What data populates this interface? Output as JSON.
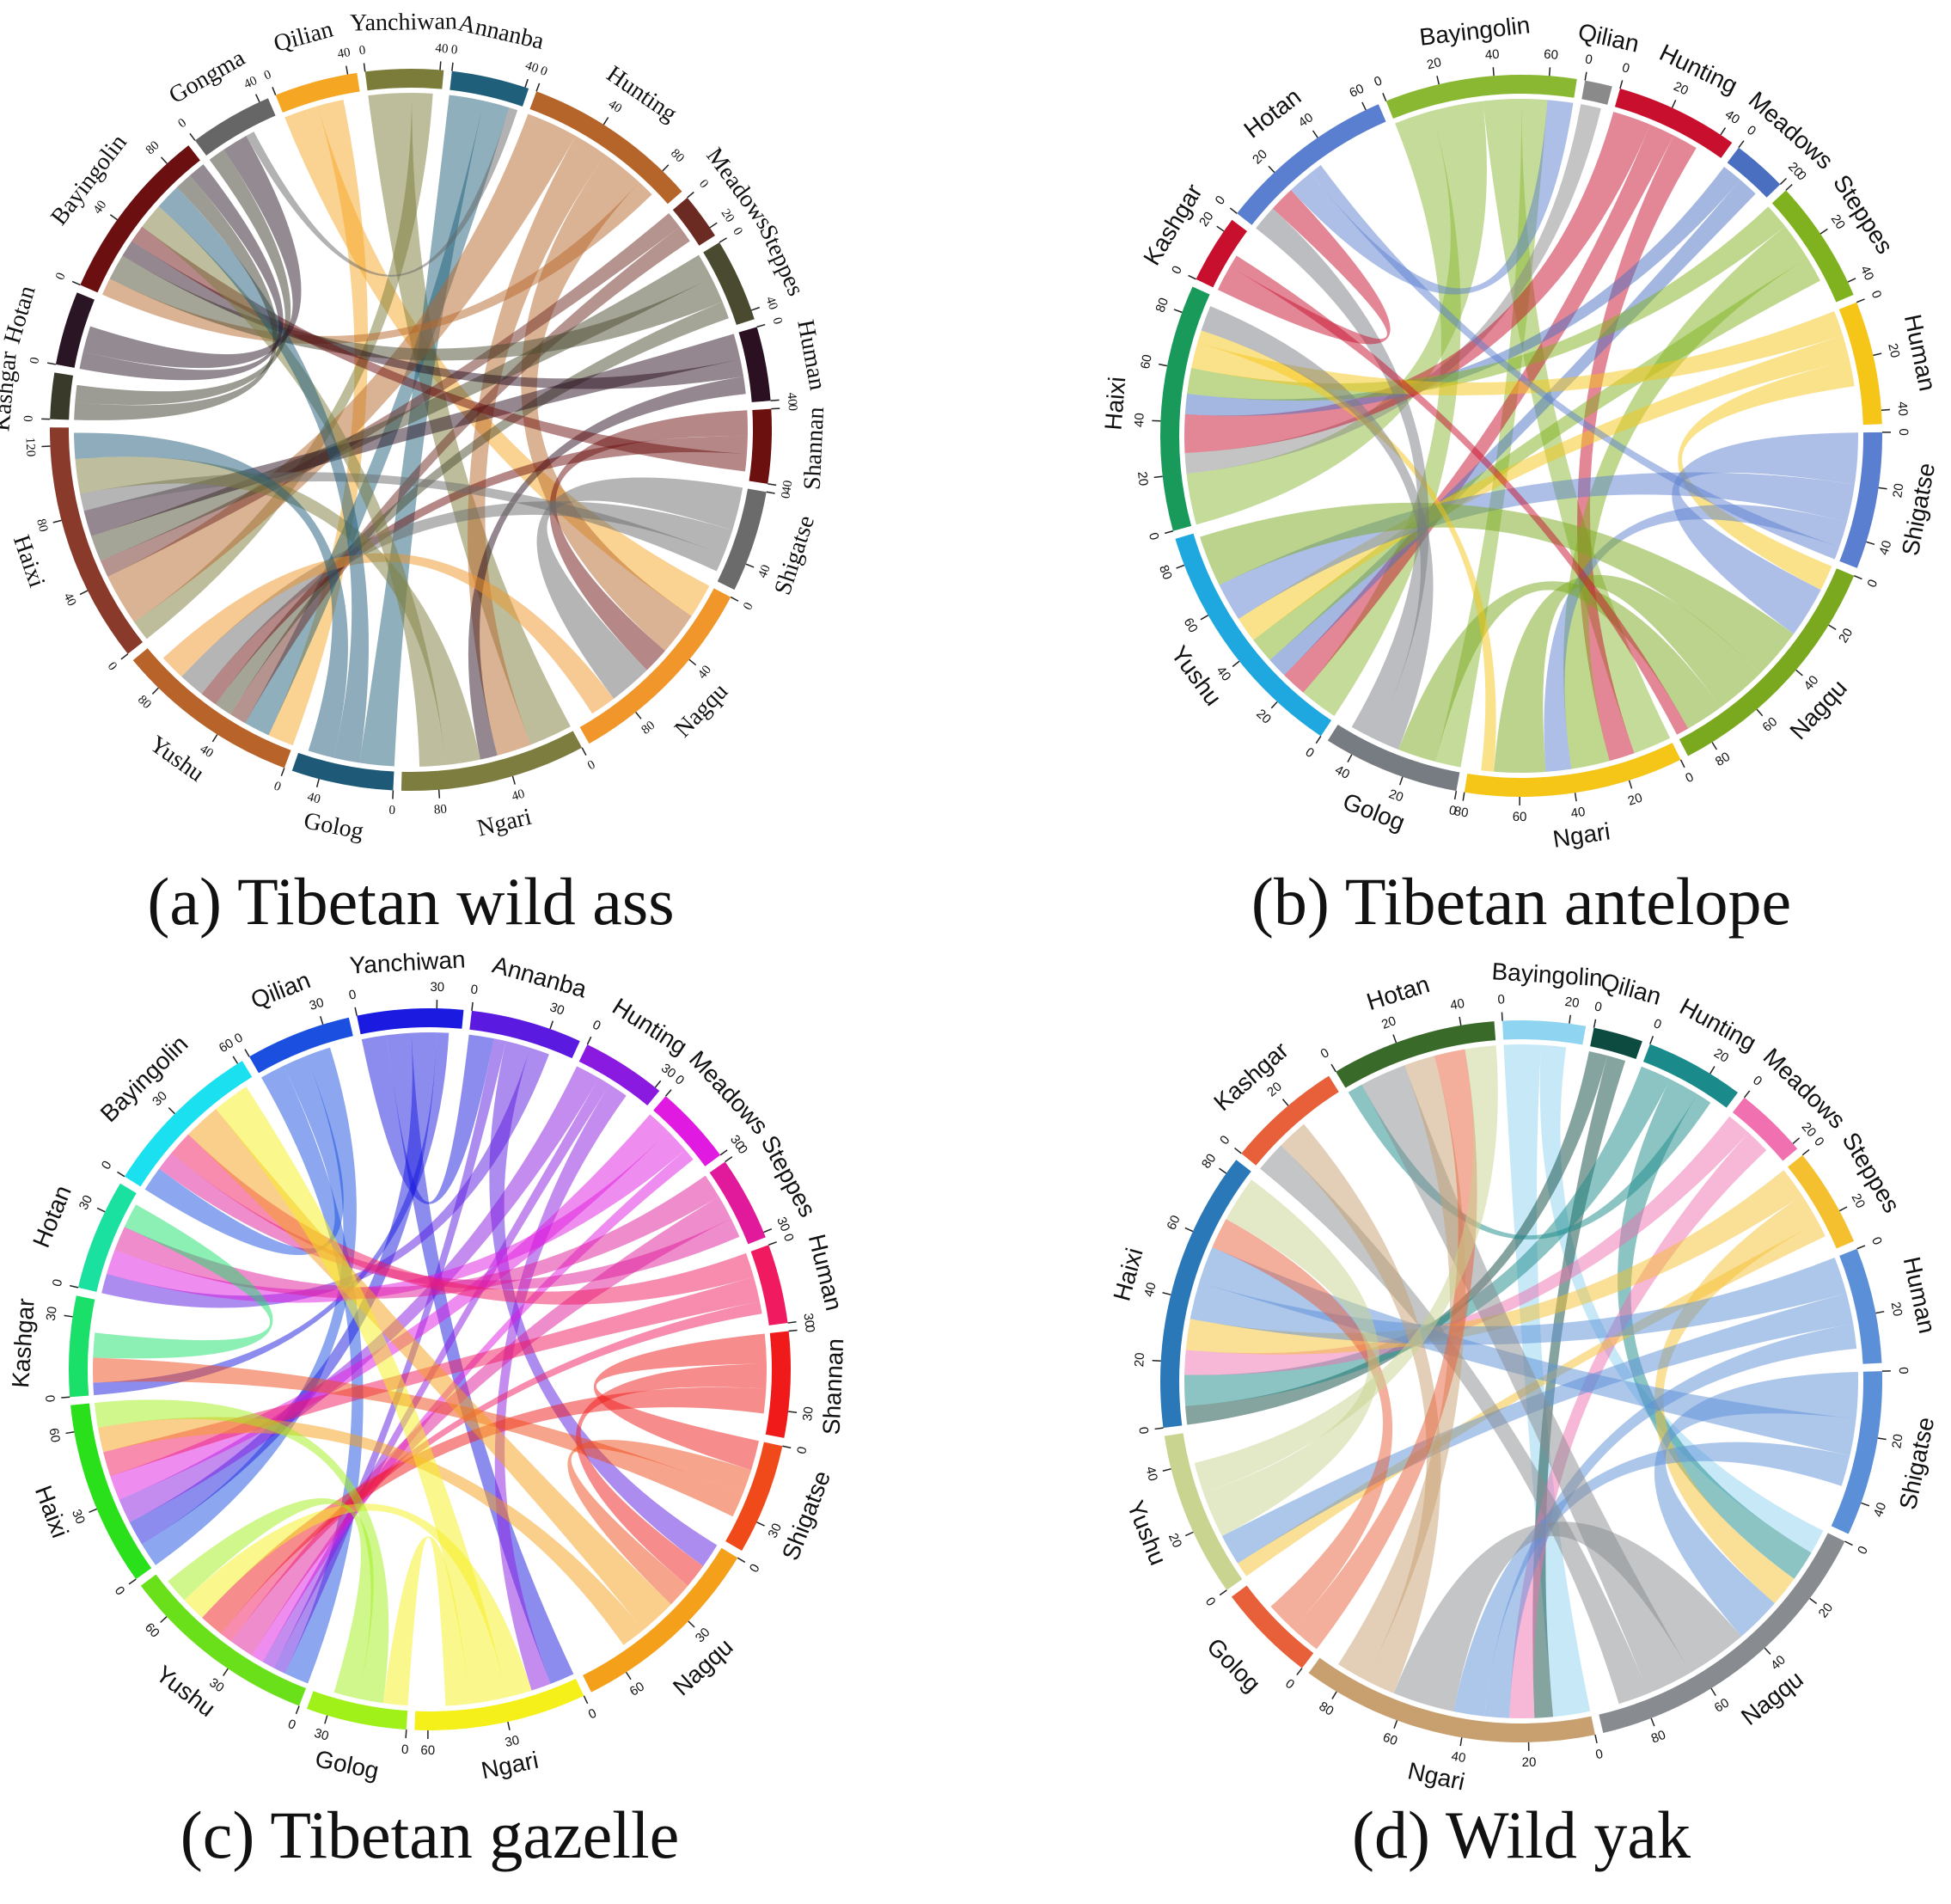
{
  "chart_data": [
    {
      "type": "chord",
      "title": "(a) Tibetan wild ass",
      "sectors": [
        {
          "name": "Qilian",
          "color": "#f5a623",
          "value": 45,
          "ticks": [
            0,
            40
          ]
        },
        {
          "name": "Yanchiwan",
          "color": "#7b7b3a",
          "value": 42,
          "ticks": [
            0,
            40
          ]
        },
        {
          "name": "Annanba",
          "color": "#1f5f7a",
          "value": 42,
          "ticks": [
            0,
            40
          ]
        },
        {
          "name": "Hunting",
          "color": "#b5652a",
          "value": 95,
          "ticks": [
            0,
            40,
            80
          ]
        },
        {
          "name": "Meadows",
          "color": "#6b2a22",
          "value": 25,
          "ticks": [
            0,
            20
          ]
        },
        {
          "name": "Steppes",
          "color": "#4a4a30",
          "value": 45,
          "ticks": [
            0,
            40
          ]
        },
        {
          "name": "Human",
          "color": "#2a1020",
          "value": 40,
          "ticks": [
            0,
            40
          ]
        },
        {
          "name": "Shannan",
          "color": "#6b0f0f",
          "value": 40,
          "ticks": [
            0,
            40
          ]
        },
        {
          "name": "Shigatse",
          "color": "#6b6b6b",
          "value": 55,
          "ticks": [
            0,
            40
          ]
        },
        {
          "name": "Nagqu",
          "color": "#f0962a",
          "value": 110,
          "ticks": [
            0,
            40,
            80
          ]
        },
        {
          "name": "Ngari",
          "color": "#7d7d40",
          "value": 100,
          "ticks": [
            0,
            40,
            80
          ]
        },
        {
          "name": "Golog",
          "color": "#1e5a78",
          "value": 55,
          "ticks": [
            0,
            40
          ]
        },
        {
          "name": "Yushu",
          "color": "#b8632a",
          "value": 100,
          "ticks": [
            0,
            40,
            80
          ]
        },
        {
          "name": "Haixi",
          "color": "#8a3a2a",
          "value": 130,
          "ticks": [
            0,
            40,
            80,
            120
          ]
        },
        {
          "name": "Kashgar",
          "color": "#3a3a2a",
          "value": 25,
          "ticks": [
            0
          ]
        },
        {
          "name": "Hotan",
          "color": "#2a1525",
          "value": 40,
          "ticks": [
            0
          ]
        },
        {
          "name": "Bayingolin",
          "color": "#6b0f10",
          "value": 95,
          "ticks": [
            0,
            40,
            80
          ]
        },
        {
          "name": "Gongma",
          "color": "#666666",
          "value": 45,
          "ticks": [
            0,
            40
          ]
        }
      ],
      "chords": [
        [
          0,
          9,
          20
        ],
        [
          0,
          12,
          15
        ],
        [
          1,
          10,
          25
        ],
        [
          1,
          13,
          12
        ],
        [
          2,
          11,
          20
        ],
        [
          2,
          12,
          15
        ],
        [
          3,
          13,
          30
        ],
        [
          3,
          10,
          20
        ],
        [
          3,
          9,
          25
        ],
        [
          3,
          16,
          10
        ],
        [
          4,
          13,
          10
        ],
        [
          4,
          12,
          10
        ],
        [
          5,
          13,
          15
        ],
        [
          5,
          16,
          15
        ],
        [
          5,
          12,
          10
        ],
        [
          6,
          13,
          15
        ],
        [
          6,
          16,
          10
        ],
        [
          6,
          10,
          10
        ],
        [
          7,
          9,
          15
        ],
        [
          7,
          12,
          10
        ],
        [
          7,
          16,
          10
        ],
        [
          8,
          9,
          25
        ],
        [
          8,
          12,
          15
        ],
        [
          8,
          13,
          10
        ],
        [
          9,
          12,
          15
        ],
        [
          10,
          13,
          20
        ],
        [
          10,
          16,
          15
        ],
        [
          11,
          16,
          15
        ],
        [
          11,
          13,
          15
        ],
        [
          14,
          16,
          10
        ],
        [
          14,
          17,
          10
        ],
        [
          15,
          16,
          10
        ],
        [
          15,
          17,
          15
        ],
        [
          17,
          2,
          5
        ]
      ]
    },
    {
      "type": "chord",
      "title": "(b) Tibetan antelope",
      "sectors": [
        {
          "name": "Bayingolin",
          "color": "#8ab833",
          "value": 70,
          "ticks": [
            0,
            20,
            40,
            60
          ]
        },
        {
          "name": "Qilian",
          "color": "#8a8a8a",
          "value": 10,
          "ticks": [
            0
          ]
        },
        {
          "name": "Hunting",
          "color": "#c8102e",
          "value": 45,
          "ticks": [
            0,
            20,
            40
          ]
        },
        {
          "name": "Meadows",
          "color": "#4a6fc1",
          "value": 20,
          "ticks": [
            0,
            20
          ]
        },
        {
          "name": "Steppes",
          "color": "#7fb21e",
          "value": 45,
          "ticks": [
            0,
            20,
            40
          ]
        },
        {
          "name": "Human",
          "color": "#f5c518",
          "value": 45,
          "ticks": [
            0,
            20,
            40
          ]
        },
        {
          "name": "Shigatse",
          "color": "#5b7fd0",
          "value": 50,
          "ticks": [
            0,
            20,
            40
          ]
        },
        {
          "name": "Nagqu",
          "color": "#7aa81e",
          "value": 90,
          "ticks": [
            0,
            20,
            40,
            60,
            80
          ]
        },
        {
          "name": "Ngari",
          "color": "#f5c518",
          "value": 80,
          "ticks": [
            0,
            20,
            40,
            60,
            80
          ]
        },
        {
          "name": "Golog",
          "color": "#777c82",
          "value": 50,
          "ticks": [
            0,
            20,
            40
          ]
        },
        {
          "name": "Yushu",
          "color": "#1fa8e0",
          "value": 90,
          "ticks": [
            0,
            20,
            40,
            60,
            80
          ]
        },
        {
          "name": "Haixi",
          "color": "#1a9a5a",
          "value": 90,
          "ticks": [
            0,
            20,
            40,
            60,
            80
          ]
        },
        {
          "name": "Kashgar",
          "color": "#c8102e",
          "value": 25,
          "ticks": [
            0,
            20
          ]
        },
        {
          "name": "Hotan",
          "color": "#5b7fd0",
          "value": 65,
          "ticks": [
            0,
            20,
            40,
            60
          ]
        }
      ],
      "chords": [
        [
          0,
          10,
          15
        ],
        [
          0,
          11,
          20
        ],
        [
          0,
          8,
          15
        ],
        [
          0,
          9,
          10
        ],
        [
          1,
          11,
          8
        ],
        [
          2,
          11,
          15
        ],
        [
          2,
          10,
          10
        ],
        [
          2,
          8,
          10
        ],
        [
          3,
          11,
          8
        ],
        [
          3,
          10,
          8
        ],
        [
          4,
          11,
          10
        ],
        [
          4,
          8,
          15
        ],
        [
          4,
          10,
          10
        ],
        [
          5,
          11,
          10
        ],
        [
          5,
          10,
          10
        ],
        [
          5,
          7,
          10
        ],
        [
          6,
          7,
          20
        ],
        [
          6,
          10,
          15
        ],
        [
          6,
          8,
          10
        ],
        [
          7,
          10,
          20
        ],
        [
          7,
          8,
          20
        ],
        [
          7,
          9,
          15
        ],
        [
          8,
          11,
          5
        ],
        [
          9,
          11,
          10
        ],
        [
          9,
          13,
          10
        ],
        [
          12,
          13,
          10
        ],
        [
          12,
          7,
          5
        ],
        [
          13,
          0,
          10
        ],
        [
          13,
          6,
          5
        ]
      ]
    },
    {
      "type": "chord",
      "title": "(c) Tibetan gazelle",
      "sectors": [
        {
          "name": "Qilian",
          "color": "#1a4fe0",
          "value": 40,
          "ticks": [
            0,
            30
          ]
        },
        {
          "name": "Yanchiwan",
          "color": "#1a1ae0",
          "value": 40,
          "ticks": [
            0,
            30
          ]
        },
        {
          "name": "Annanba",
          "color": "#5a1ae0",
          "value": 42,
          "ticks": [
            0,
            30
          ]
        },
        {
          "name": "Hunting",
          "color": "#8a1ae0",
          "value": 32,
          "ticks": [
            0,
            30
          ]
        },
        {
          "name": "Meadows",
          "color": "#e01ae0",
          "value": 30,
          "ticks": [
            0,
            30
          ]
        },
        {
          "name": "Steppes",
          "color": "#e01a9a",
          "value": 32,
          "ticks": [
            0,
            30
          ]
        },
        {
          "name": "Human",
          "color": "#f01a60",
          "value": 30,
          "ticks": [
            0,
            30
          ]
        },
        {
          "name": "Shannan",
          "color": "#f01a1a",
          "value": 40,
          "ticks": [
            0,
            30
          ]
        },
        {
          "name": "Shigatse",
          "color": "#f04a1a",
          "value": 42,
          "ticks": [
            0,
            30
          ]
        },
        {
          "name": "Nagqu",
          "color": "#f5a01a",
          "value": 75,
          "ticks": [
            0,
            30,
            60
          ]
        },
        {
          "name": "Ngari",
          "color": "#f5f01a",
          "value": 65,
          "ticks": [
            0,
            30,
            60
          ]
        },
        {
          "name": "Golog",
          "color": "#a0f01a",
          "value": 38,
          "ticks": [
            0,
            30
          ]
        },
        {
          "name": "Yushu",
          "color": "#6ae01a",
          "value": 75,
          "ticks": [
            0,
            30,
            60
          ]
        },
        {
          "name": "Haixi",
          "color": "#2ae01a",
          "value": 70,
          "ticks": [
            0,
            30,
            60
          ]
        },
        {
          "name": "Kashgar",
          "color": "#1ae06a",
          "value": 38,
          "ticks": [
            0,
            30
          ]
        },
        {
          "name": "Hotan",
          "color": "#1ae0a0",
          "value": 42,
          "ticks": [
            0,
            30
          ]
        },
        {
          "name": "Bayingolin",
          "color": "#1ae0f0",
          "value": 62,
          "ticks": [
            0,
            30,
            60
          ]
        }
      ],
      "chords": [
        [
          0,
          12,
          10
        ],
        [
          0,
          16,
          10
        ],
        [
          0,
          13,
          10
        ],
        [
          1,
          2,
          10
        ],
        [
          1,
          10,
          10
        ],
        [
          1,
          13,
          10
        ],
        [
          1,
          14,
          5
        ],
        [
          2,
          12,
          5
        ],
        [
          2,
          9,
          10
        ],
        [
          2,
          15,
          8
        ],
        [
          3,
          13,
          10
        ],
        [
          3,
          12,
          5
        ],
        [
          3,
          10,
          8
        ],
        [
          4,
          13,
          10
        ],
        [
          4,
          15,
          10
        ],
        [
          4,
          12,
          5
        ],
        [
          5,
          15,
          10
        ],
        [
          5,
          12,
          10
        ],
        [
          5,
          16,
          8
        ],
        [
          6,
          16,
          10
        ],
        [
          6,
          13,
          10
        ],
        [
          6,
          12,
          5
        ],
        [
          7,
          8,
          12
        ],
        [
          7,
          9,
          10
        ],
        [
          7,
          12,
          10
        ],
        [
          8,
          9,
          10
        ],
        [
          8,
          14,
          10
        ],
        [
          9,
          16,
          15
        ],
        [
          9,
          13,
          10
        ],
        [
          10,
          12,
          10
        ],
        [
          10,
          16,
          15
        ],
        [
          10,
          11,
          10
        ],
        [
          11,
          13,
          10
        ],
        [
          11,
          12,
          10
        ],
        [
          14,
          15,
          10
        ]
      ]
    },
    {
      "type": "chord",
      "title": "(d) Wild yak",
      "sectors": [
        {
          "name": "Bayingolin",
          "color": "#8fd4f0",
          "value": 25,
          "ticks": [
            0,
            20
          ]
        },
        {
          "name": "Qilian",
          "color": "#0d4a40",
          "value": 15,
          "ticks": [
            0
          ]
        },
        {
          "name": "Hunting",
          "color": "#1a8a8a",
          "value": 30,
          "ticks": [
            0,
            20
          ]
        },
        {
          "name": "Meadows",
          "color": "#f070b0",
          "value": 22,
          "ticks": [
            0,
            20
          ]
        },
        {
          "name": "Steppes",
          "color": "#f5c030",
          "value": 30,
          "ticks": [
            0,
            20
          ]
        },
        {
          "name": "Human",
          "color": "#5b8fd8",
          "value": 35,
          "ticks": [
            0,
            20
          ]
        },
        {
          "name": "Shigatse",
          "color": "#5b8fd8",
          "value": 50,
          "ticks": [
            0,
            20,
            40
          ]
        },
        {
          "name": "Nagqu",
          "color": "#888c90",
          "value": 95,
          "ticks": [
            0,
            20,
            40,
            60,
            80
          ]
        },
        {
          "name": "Ngari",
          "color": "#c8a070",
          "value": 90,
          "ticks": [
            0,
            20,
            40,
            60,
            80
          ]
        },
        {
          "name": "Golog",
          "color": "#e8603a",
          "value": 30,
          "ticks": [
            0
          ]
        },
        {
          "name": "Yushu",
          "color": "#c8d490",
          "value": 50,
          "ticks": [
            0,
            20,
            40
          ]
        },
        {
          "name": "Haixi",
          "color": "#2a78b8",
          "value": 85,
          "ticks": [
            0,
            20,
            40,
            60,
            80
          ]
        },
        {
          "name": "Kashgar",
          "color": "#e8603a",
          "value": 35,
          "ticks": [
            0,
            20
          ]
        },
        {
          "name": "Hotan",
          "color": "#3a6a2a",
          "value": 50,
          "ticks": [
            0,
            20,
            40
          ]
        }
      ],
      "chords": [
        [
          0,
          8,
          12
        ],
        [
          0,
          7,
          8
        ],
        [
          1,
          11,
          6
        ],
        [
          1,
          8,
          6
        ],
        [
          2,
          11,
          10
        ],
        [
          2,
          7,
          10
        ],
        [
          2,
          13,
          5
        ],
        [
          3,
          11,
          8
        ],
        [
          3,
          8,
          8
        ],
        [
          4,
          11,
          10
        ],
        [
          4,
          7,
          10
        ],
        [
          4,
          10,
          5
        ],
        [
          5,
          11,
          12
        ],
        [
          5,
          10,
          10
        ],
        [
          5,
          8,
          8
        ],
        [
          6,
          7,
          15
        ],
        [
          6,
          11,
          12
        ],
        [
          6,
          8,
          10
        ],
        [
          7,
          8,
          20
        ],
        [
          7,
          13,
          15
        ],
        [
          7,
          12,
          10
        ],
        [
          8,
          12,
          10
        ],
        [
          8,
          13,
          10
        ],
        [
          9,
          13,
          10
        ],
        [
          9,
          11,
          10
        ],
        [
          10,
          11,
          15
        ],
        [
          10,
          13,
          10
        ]
      ]
    }
  ]
}
